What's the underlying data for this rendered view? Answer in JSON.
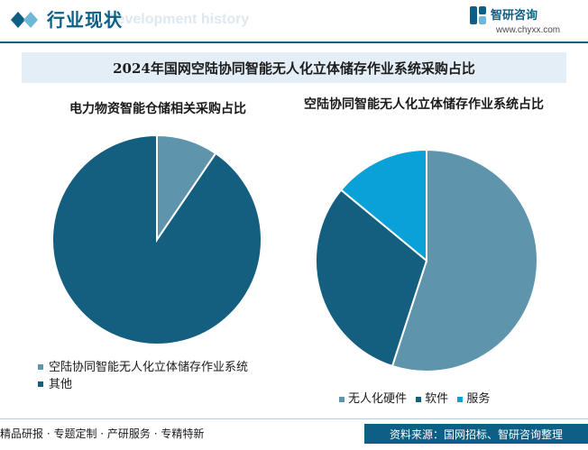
{
  "header": {
    "title": "行业现状",
    "subtitle": "Development history",
    "logo_name": "智研咨询",
    "logo_url": "www.chyxx.com"
  },
  "banner_title": "2024年国网空陆协同智能无人化立体储存作业系统采购占比",
  "colors": {
    "dark": "#145e7f",
    "mid": "#5f94ad",
    "light": "#0aa0d8",
    "brand": "#0d5f86"
  },
  "chart_data": [
    {
      "type": "pie",
      "title": "电力物资智能仓储相关采购占比",
      "legend_position": "bottom",
      "slices": [
        {
          "label": "空陆协同智能无人化立体储存作业系统",
          "value": 9.5,
          "color": "#5f94ad"
        },
        {
          "label": "其他",
          "value": 90.5,
          "color": "#145e7f"
        }
      ]
    },
    {
      "type": "pie",
      "title": "空陆协同智能无人化立体储存作业系统占比",
      "legend_position": "bottom",
      "slices": [
        {
          "label": "无人化硬件",
          "value": 55,
          "color": "#5f94ad"
        },
        {
          "label": "软件",
          "value": 31,
          "color": "#145e7f"
        },
        {
          "label": "服务",
          "value": 14,
          "color": "#0aa0d8"
        }
      ]
    }
  ],
  "footer": {
    "left": "精品研报 · 专题定制 · 产研服务 · 专精特新",
    "right": "资料来源：国网招标、智研咨询整理"
  }
}
